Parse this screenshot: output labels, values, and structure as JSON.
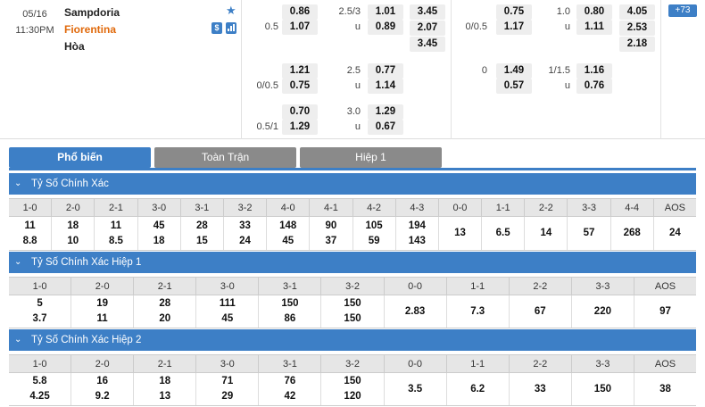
{
  "match": {
    "date": "05/16",
    "time": "11:30PM",
    "home": "Sampdoria",
    "away": "Fiorentina",
    "draw": "Hòa",
    "more_count": "+73"
  },
  "odds": {
    "ft_1x2": {
      "r1": "3.45",
      "r2": "2.07",
      "r3": "3.45"
    },
    "ft_handicap": [
      {
        "l1": "",
        "v1": "0.86",
        "l2": "0.5",
        "v2": "1.07"
      },
      {
        "l1": "",
        "v1": "1.21",
        "l2": "0/0.5",
        "v2": "0.75"
      },
      {
        "l1": "",
        "v1": "0.70",
        "l2": "0.5/1",
        "v2": "1.29"
      }
    ],
    "ft_ou": [
      {
        "line": "2.5/3",
        "over": "1.01",
        "u": "u",
        "under": "0.89"
      },
      {
        "line": "2.5",
        "over": "0.77",
        "u": "u",
        "under": "1.14"
      },
      {
        "line": "3.0",
        "over": "1.29",
        "u": "u",
        "under": "0.67"
      }
    ],
    "h1_handicap": [
      {
        "l1": "",
        "v1": "0.75",
        "l2": "0/0.5",
        "v2": "1.17"
      },
      {
        "l1": "0",
        "v1": "1.49",
        "l2": "",
        "v2": "0.57"
      }
    ],
    "h1_ou": [
      {
        "line": "1.0",
        "over": "0.80",
        "u": "u",
        "under": "1.11"
      },
      {
        "line": "1/1.5",
        "over": "1.16",
        "u": "u",
        "under": "0.76"
      }
    ],
    "h1_1x2": {
      "r1": "4.05",
      "r2": "2.53",
      "r3": "2.18"
    }
  },
  "tabs": [
    "Phổ biến",
    "Toàn Trận",
    "Hiệp 1"
  ],
  "sections": [
    {
      "title": "Tỷ Số Chính Xác",
      "headers": [
        "1-0",
        "2-0",
        "2-1",
        "3-0",
        "3-1",
        "3-2",
        "4-0",
        "4-1",
        "4-2",
        "4-3",
        "0-0",
        "1-1",
        "2-2",
        "3-3",
        "4-4",
        "AOS"
      ],
      "values": [
        [
          "11",
          "8.8"
        ],
        [
          "18",
          "10"
        ],
        [
          "11",
          "8.5"
        ],
        [
          "45",
          "18"
        ],
        [
          "28",
          "15"
        ],
        [
          "33",
          "24"
        ],
        [
          "148",
          "45"
        ],
        [
          "90",
          "37"
        ],
        [
          "105",
          "59"
        ],
        [
          "194",
          "143"
        ],
        [
          "13"
        ],
        [
          "6.5"
        ],
        [
          "14"
        ],
        [
          "57"
        ],
        [
          "268"
        ],
        [
          "24"
        ]
      ]
    },
    {
      "title": "Tỷ Số Chính Xác Hiệp 1",
      "headers": [
        "1-0",
        "2-0",
        "2-1",
        "3-0",
        "3-1",
        "3-2",
        "0-0",
        "1-1",
        "2-2",
        "3-3",
        "AOS"
      ],
      "values": [
        [
          "5",
          "3.7"
        ],
        [
          "19",
          "11"
        ],
        [
          "28",
          "20"
        ],
        [
          "111",
          "45"
        ],
        [
          "150",
          "86"
        ],
        [
          "150",
          "150"
        ],
        [
          "2.83"
        ],
        [
          "7.3"
        ],
        [
          "67"
        ],
        [
          "220"
        ],
        [
          "97"
        ]
      ]
    },
    {
      "title": "Tỷ Số Chính Xác Hiệp 2",
      "headers": [
        "1-0",
        "2-0",
        "2-1",
        "3-0",
        "3-1",
        "3-2",
        "0-0",
        "1-1",
        "2-2",
        "3-3",
        "AOS"
      ],
      "values": [
        [
          "5.8",
          "4.25"
        ],
        [
          "16",
          "9.2"
        ],
        [
          "18",
          "13"
        ],
        [
          "71",
          "29"
        ],
        [
          "76",
          "42"
        ],
        [
          "150",
          "120"
        ],
        [
          "3.5"
        ],
        [
          "6.2"
        ],
        [
          "33"
        ],
        [
          "150"
        ],
        [
          "38"
        ]
      ]
    }
  ]
}
